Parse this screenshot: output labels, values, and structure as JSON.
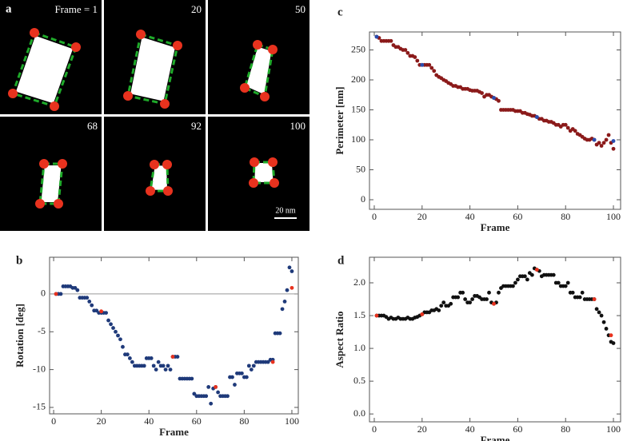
{
  "panel_a": {
    "label": "a",
    "frames": [
      "Frame = 1",
      "20",
      "50",
      "68",
      "92",
      "100"
    ],
    "scale_bar": "20 nm"
  },
  "chart_data": [
    {
      "type": "scatter",
      "panel": "b",
      "x_label": "Frame",
      "y_label": "Rotation [deg]",
      "xlim": [
        -1.7,
        102.7
      ],
      "ylim": [
        -15.85,
        4.85
      ],
      "xticks": [
        0,
        20,
        40,
        60,
        80,
        100
      ],
      "yticks": [
        -15,
        -10,
        -5,
        0
      ],
      "reference_line": 0,
      "series": [
        {
          "color": "#1f3a7a",
          "x": [
            1,
            2,
            3,
            4,
            5,
            6,
            7,
            8,
            9,
            10,
            11,
            12,
            13,
            14,
            15,
            16,
            17,
            18,
            19,
            20,
            21,
            22,
            23,
            24,
            25,
            26,
            27,
            28,
            29,
            30,
            31,
            32,
            33,
            34,
            35,
            36,
            37,
            38,
            39,
            40,
            41,
            42,
            43,
            44,
            45,
            46,
            47,
            48,
            49,
            50,
            51,
            52,
            53,
            54,
            55,
            56,
            57,
            58,
            59,
            60,
            61,
            62,
            63,
            64,
            65,
            66,
            67,
            68,
            69,
            70,
            71,
            72,
            73,
            74,
            75,
            76,
            77,
            78,
            79,
            80,
            81,
            82,
            83,
            84,
            85,
            86,
            87,
            88,
            89,
            90,
            91,
            92,
            93,
            94,
            95,
            96,
            97,
            98,
            99,
            100
          ],
          "values": [
            0,
            0,
            0,
            1,
            1,
            1,
            1,
            0.8,
            0.8,
            0.5,
            -0.5,
            -0.5,
            -0.5,
            -0.5,
            -1,
            -1.5,
            -2.2,
            -2.2,
            -2.5,
            -2.5,
            -2.5,
            -2.5,
            -3.5,
            -4,
            -4.5,
            -5,
            -5.5,
            -6,
            -7,
            -8,
            -8,
            -8.5,
            -9,
            -9.5,
            -9.5,
            -9.5,
            -9.5,
            -9.5,
            -8.5,
            -8.5,
            -8.5,
            -9.5,
            -10,
            -9,
            -9.5,
            -9.5,
            -10,
            -9.5,
            -10,
            -8.3,
            -8.3,
            -8.3,
            -11.2,
            -11.2,
            -11.2,
            -11.2,
            -11.2,
            -11.2,
            -13.2,
            -13.5,
            -13.5,
            -13.5,
            -13.5,
            -13.5,
            -12.3,
            -14.5,
            -12.5,
            -12.3,
            -13,
            -13.5,
            -13.5,
            -13.5,
            -13.5,
            -11,
            -11,
            -12,
            -10.5,
            -10.5,
            -10.5,
            -11,
            -11,
            -9.5,
            -10,
            -9.5,
            -9,
            -9,
            -9,
            -9,
            -9,
            -9,
            -8.7,
            -8.7,
            -5.2,
            -5.2,
            -5.2,
            -2,
            -1,
            0.5,
            3.5,
            3
          ]
        },
        {
          "color": "#e8321e",
          "x": [
            1,
            20,
            50,
            68,
            92,
            100
          ],
          "values": [
            0,
            -2.3,
            -8.3,
            -12.3,
            -9,
            0.8
          ]
        }
      ]
    },
    {
      "type": "scatter",
      "panel": "c",
      "x_label": "Frame",
      "y_label": "Perimeter [nm]",
      "xlim": [
        -2,
        103
      ],
      "ylim": [
        -16,
        280
      ],
      "xticks": [
        0,
        20,
        40,
        60,
        80,
        100
      ],
      "yticks": [
        0,
        50,
        100,
        150,
        200,
        250
      ],
      "series": [
        {
          "color": "#8b1a1a",
          "x": [
            1,
            2,
            3,
            4,
            5,
            6,
            7,
            8,
            9,
            10,
            11,
            12,
            13,
            14,
            15,
            16,
            17,
            18,
            19,
            20,
            21,
            22,
            23,
            24,
            25,
            26,
            27,
            28,
            29,
            30,
            31,
            32,
            33,
            34,
            35,
            36,
            37,
            38,
            39,
            40,
            41,
            42,
            43,
            44,
            45,
            46,
            47,
            48,
            49,
            50,
            51,
            52,
            53,
            54,
            55,
            56,
            57,
            58,
            59,
            60,
            61,
            62,
            63,
            64,
            65,
            66,
            67,
            68,
            69,
            70,
            71,
            72,
            73,
            74,
            75,
            76,
            77,
            78,
            79,
            80,
            81,
            82,
            83,
            84,
            85,
            86,
            87,
            88,
            89,
            90,
            91,
            92,
            93,
            94,
            95,
            96,
            97,
            98,
            99,
            100
          ],
          "values": [
            272,
            270,
            265,
            265,
            265,
            265,
            265,
            258,
            255,
            255,
            252,
            250,
            250,
            245,
            240,
            240,
            238,
            232,
            225,
            225,
            225,
            225,
            225,
            220,
            215,
            208,
            205,
            203,
            200,
            198,
            195,
            193,
            190,
            190,
            188,
            188,
            185,
            185,
            185,
            183,
            182,
            182,
            182,
            180,
            178,
            172,
            175,
            175,
            172,
            170,
            168,
            165,
            150,
            150,
            150,
            150,
            150,
            150,
            148,
            148,
            148,
            145,
            145,
            143,
            142,
            140,
            140,
            138,
            135,
            135,
            132,
            132,
            130,
            130,
            128,
            125,
            125,
            122,
            125,
            125,
            120,
            115,
            118,
            115,
            110,
            108,
            105,
            102,
            100,
            100,
            102,
            100,
            92,
            95,
            90,
            95,
            100,
            108,
            95,
            85
          ]
        },
        {
          "color": "#2a4db0",
          "x": [
            1,
            20,
            50,
            68,
            92,
            100
          ],
          "values": [
            272,
            225,
            170,
            138,
            100,
            98
          ]
        }
      ]
    },
    {
      "type": "scatter",
      "panel": "d",
      "x_label": "Frame",
      "y_label": "Aspect Ratio",
      "xlim": [
        -2,
        103
      ],
      "ylim": [
        -0.12,
        2.39
      ],
      "xticks": [
        0,
        20,
        40,
        60,
        80,
        100
      ],
      "yticks": [
        {
          "value": 0,
          "label": "0.0"
        },
        0.5,
        {
          "value": 1,
          "label": "1.0"
        },
        1.5,
        {
          "value": 2,
          "label": "2.0"
        }
      ],
      "series": [
        {
          "color": "#111111",
          "x": [
            1,
            2,
            3,
            4,
            5,
            6,
            7,
            8,
            9,
            10,
            11,
            12,
            13,
            14,
            15,
            16,
            17,
            18,
            19,
            20,
            21,
            22,
            23,
            24,
            25,
            26,
            27,
            28,
            29,
            30,
            31,
            32,
            33,
            34,
            35,
            36,
            37,
            38,
            39,
            40,
            41,
            42,
            43,
            44,
            45,
            46,
            47,
            48,
            49,
            50,
            51,
            52,
            53,
            54,
            55,
            56,
            57,
            58,
            59,
            60,
            61,
            62,
            63,
            64,
            65,
            66,
            67,
            68,
            69,
            70,
            71,
            72,
            73,
            74,
            75,
            76,
            77,
            78,
            79,
            80,
            81,
            82,
            83,
            84,
            85,
            86,
            87,
            88,
            89,
            90,
            91,
            92,
            93,
            94,
            95,
            96,
            97,
            98,
            99,
            100
          ],
          "values": [
            1.5,
            1.5,
            1.5,
            1.5,
            1.48,
            1.45,
            1.47,
            1.45,
            1.45,
            1.47,
            1.45,
            1.45,
            1.45,
            1.47,
            1.45,
            1.45,
            1.47,
            1.48,
            1.5,
            1.52,
            1.55,
            1.55,
            1.55,
            1.58,
            1.58,
            1.6,
            1.58,
            1.65,
            1.7,
            1.65,
            1.65,
            1.68,
            1.78,
            1.78,
            1.78,
            1.85,
            1.85,
            1.75,
            1.7,
            1.7,
            1.75,
            1.8,
            1.8,
            1.78,
            1.75,
            1.75,
            1.75,
            1.85,
            1.7,
            1.68,
            1.7,
            1.85,
            1.92,
            1.95,
            1.95,
            1.95,
            1.95,
            1.95,
            2,
            2.05,
            2.1,
            2.1,
            2.1,
            2.05,
            2.15,
            2.12,
            2.22,
            2.2,
            2.18,
            2.1,
            2.12,
            2.12,
            2.12,
            2.12,
            2.12,
            2,
            2,
            1.95,
            1.95,
            1.95,
            2,
            1.85,
            1.85,
            1.78,
            1.78,
            1.78,
            1.85,
            1.75,
            1.75,
            1.75,
            1.75,
            1.75,
            1.6,
            1.55,
            1.5,
            1.4,
            1.3,
            1.2,
            1.1,
            1.08
          ]
        },
        {
          "color": "#e8321e",
          "x": [
            1,
            20,
            50,
            68,
            92,
            99
          ],
          "values": [
            1.5,
            1.52,
            1.68,
            2.2,
            1.75,
            1.2
          ]
        }
      ]
    }
  ]
}
